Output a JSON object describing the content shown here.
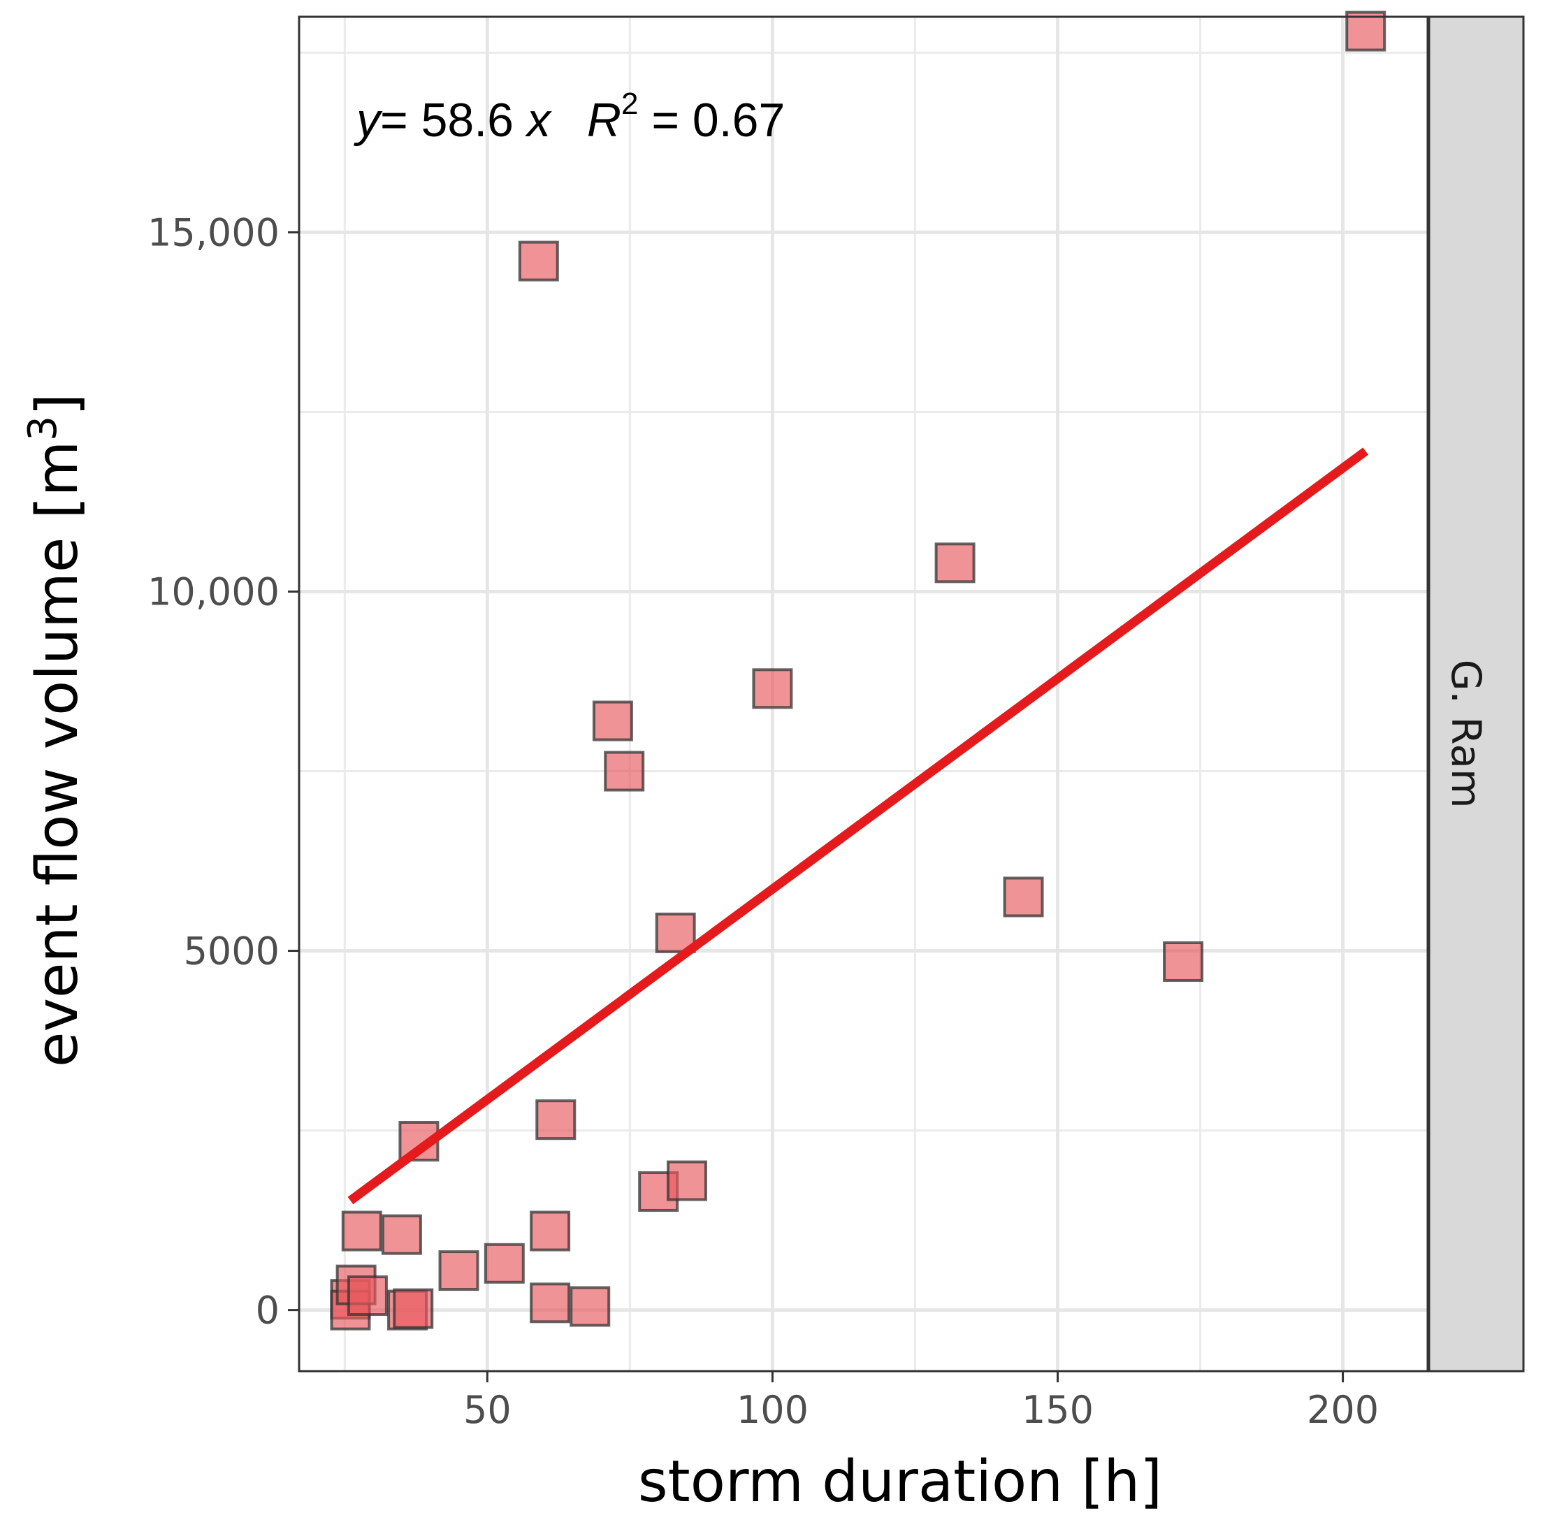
{
  "chart_data": {
    "type": "scatter",
    "title": "",
    "xlabel": "storm duration [h]",
    "ylabel_main": "event flow volume [m",
    "ylabel_sup": "3",
    "ylabel_close": "]",
    "xlim": [
      17,
      215
    ],
    "ylim": [
      -850,
      18000
    ],
    "x_ticks": [
      50,
      100,
      150,
      200
    ],
    "x_tick_labels": [
      "50",
      "100",
      "150",
      "200"
    ],
    "y_ticks": [
      0,
      5000,
      10000,
      15000
    ],
    "y_tick_labels": [
      "0",
      "5000",
      "10,000",
      "15,000"
    ],
    "grid": true,
    "facet_label": "G. Ram",
    "point_color": "#e8595e",
    "fit_line_color": "#e41a1c",
    "annotation": {
      "y_var": "y",
      "equation_rest": "= 58.6 ",
      "x_var": "x",
      "r_var": "R",
      "r_sup": "2",
      "r_value": " = 0.67"
    },
    "fit": {
      "slope": 58.6,
      "x_start": 26,
      "x_end": 204
    },
    "series": [
      {
        "name": "events",
        "points": [
          {
            "x": 26,
            "y": 150
          },
          {
            "x": 26,
            "y": 0
          },
          {
            "x": 27,
            "y": 350
          },
          {
            "x": 29,
            "y": 200
          },
          {
            "x": 28,
            "y": 1100
          },
          {
            "x": 35,
            "y": 1050
          },
          {
            "x": 36,
            "y": 0
          },
          {
            "x": 37,
            "y": 20
          },
          {
            "x": 38,
            "y": 2350
          },
          {
            "x": 45,
            "y": 550
          },
          {
            "x": 53,
            "y": 650
          },
          {
            "x": 61,
            "y": 100
          },
          {
            "x": 61,
            "y": 1100
          },
          {
            "x": 62,
            "y": 2650
          },
          {
            "x": 59,
            "y": 14600
          },
          {
            "x": 68,
            "y": 50
          },
          {
            "x": 72,
            "y": 8200
          },
          {
            "x": 74,
            "y": 7500
          },
          {
            "x": 80,
            "y": 1650
          },
          {
            "x": 83,
            "y": 5250
          },
          {
            "x": 85,
            "y": 1800
          },
          {
            "x": 100,
            "y": 8650
          },
          {
            "x": 132,
            "y": 10400
          },
          {
            "x": 144,
            "y": 5750
          },
          {
            "x": 172,
            "y": 4850
          },
          {
            "x": 204,
            "y": 17800
          }
        ]
      }
    ]
  }
}
